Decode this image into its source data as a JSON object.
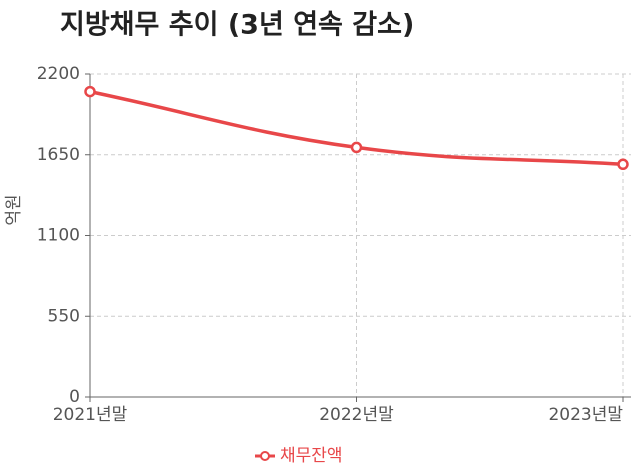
{
  "chart_data": {
    "type": "line",
    "title": "지방채무 추이 (3년 연속 감소)",
    "y_label": "억원",
    "categories": [
      "2021년말",
      "2022년말",
      "2023년말"
    ],
    "series": [
      {
        "name": "채무잔액",
        "color": "#e84749",
        "values": [
          2080,
          1700,
          1585
        ]
      }
    ],
    "ylim": [
      0,
      2200
    ],
    "yticks": [
      0,
      550,
      1100,
      1650,
      2200
    ],
    "grid": true,
    "legend": "bottom"
  }
}
